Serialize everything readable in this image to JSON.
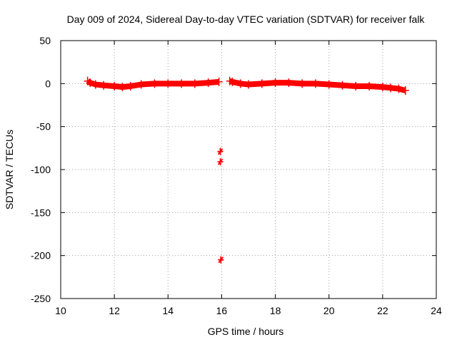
{
  "chart_data": {
    "type": "scatter",
    "title": "Day 009 of 2024, Sidereal Day-to-day VTEC variation (SDTVAR) for receiver falk",
    "xlabel": "GPS time / hours",
    "ylabel": "SDTVAR / TECUs",
    "xlim": [
      10,
      24
    ],
    "ylim": [
      -250,
      50
    ],
    "xticks": [
      10,
      12,
      14,
      16,
      18,
      20,
      22,
      24
    ],
    "yticks": [
      -250,
      -200,
      -150,
      -100,
      -50,
      0,
      50
    ],
    "xtick_labels": [
      "10",
      "12",
      "14",
      "16",
      "18",
      "20",
      "22",
      "24"
    ],
    "ytick_labels": [
      "-250",
      "-200",
      "-150",
      "-100",
      "-50",
      "0",
      "50"
    ],
    "grid": true,
    "marker": "plus",
    "series": [
      {
        "name": "SDTVAR",
        "color": "#ff0000",
        "segments": [
          {
            "x": [
              11.0,
              11.1,
              11.3,
              11.6,
              12.0,
              12.3,
              12.6,
              13.0,
              13.5,
              14.0,
              14.5,
              15.0,
              15.5,
              15.9
            ],
            "y": [
              3,
              1,
              -1,
              -2,
              -3,
              -4,
              -3,
              -1,
              0,
              0,
              0,
              0,
              1,
              2
            ]
          },
          {
            "x": [
              16.3,
              16.4,
              16.7,
              17.0,
              17.5,
              18.0,
              18.5,
              19.0,
              19.5,
              20.0,
              20.5,
              21.0,
              21.5,
              22.0,
              22.3,
              22.6,
              22.85
            ],
            "y": [
              3,
              2,
              0,
              -1,
              0,
              1,
              1,
              0,
              0,
              -1,
              -2,
              -3,
              -3,
              -4,
              -5,
              -6,
              -8
            ]
          }
        ],
        "outliers": [
          {
            "x": 15.95,
            "y": -79
          },
          {
            "x": 15.95,
            "y": -91
          },
          {
            "x": 15.97,
            "y": -205
          }
        ]
      }
    ]
  }
}
